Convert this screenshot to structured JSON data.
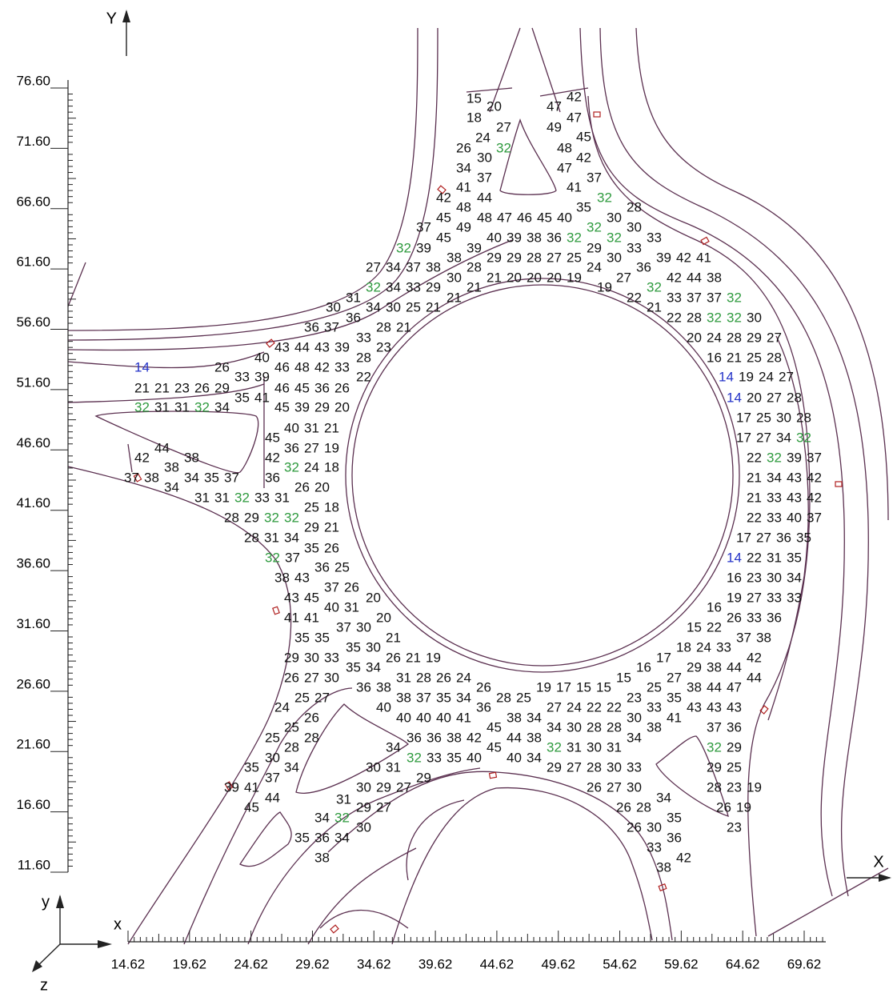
{
  "axis_titles": {
    "top_y": "Y",
    "right_x": "X",
    "triad_x": "x",
    "triad_y": "y",
    "triad_z": "z"
  },
  "x_axis": {
    "ticks": [
      14.62,
      19.62,
      24.62,
      29.62,
      34.62,
      39.62,
      44.62,
      49.62,
      54.62,
      59.62,
      64.62,
      69.62
    ]
  },
  "y_axis": {
    "ticks": [
      {
        "value": 76.6,
        "label": "76.60"
      },
      {
        "value": 71.6,
        "label": "71.60"
      },
      {
        "value": 66.6,
        "label": "66.60"
      },
      {
        "value": 61.6,
        "label": "61.60"
      },
      {
        "value": 56.6,
        "label": "56.60"
      },
      {
        "value": 51.6,
        "label": "51.60"
      },
      {
        "value": 46.6,
        "label": "46.60"
      },
      {
        "value": 41.6,
        "label": "41.60"
      },
      {
        "value": 36.6,
        "label": "36.60"
      },
      {
        "value": 31.6,
        "label": "31.60"
      },
      {
        "value": 26.6,
        "label": "26.60"
      },
      {
        "value": 21.6,
        "label": "21.60"
      },
      {
        "value": 16.6,
        "label": "16.60"
      },
      {
        "value": 11.6,
        "label": "11.60"
      }
    ]
  },
  "label_colors": {
    "default": "#111111",
    "32": "#2e9a3e",
    "14": "#2433c8"
  },
  "labels": [
    [
      15
    ],
    [
      20
    ],
    [
      47
    ],
    [
      42
    ],
    [
      18
    ],
    [
      27
    ],
    [
      47
    ],
    [
      49
    ],
    [
      24
    ],
    [
      45
    ],
    [
      26
    ],
    [
      30
    ],
    [
      32
    ],
    [
      48
    ],
    [
      42
    ],
    [
      34
    ],
    [
      47
    ],
    [
      37
    ],
    [
      37
    ],
    [
      41
    ],
    [
      41
    ],
    [
      42
    ],
    [
      44
    ],
    [
      32
    ],
    [
      48
    ],
    [
      35
    ],
    [
      28
    ],
    [
      45
    ],
    [
      48,
      47,
      46,
      45,
      40
    ],
    [
      30
    ],
    [
      37
    ],
    [
      49
    ],
    [
      32
    ],
    [
      30
    ],
    [
      45
    ],
    [
      40,
      39,
      38,
      36
    ],
    [
      32
    ],
    [
      32
    ],
    [
      33
    ],
    [
      32,
      39
    ],
    [
      39
    ],
    [
      29
    ],
    [
      33
    ],
    [
      38
    ],
    [
      29,
      29,
      28,
      27,
      25
    ],
    [
      30
    ],
    [
      39,
      42,
      41
    ],
    [
      27,
      34,
      37,
      38
    ],
    [
      28
    ],
    [
      24
    ],
    [
      36
    ],
    [
      30
    ],
    [
      21,
      20,
      20,
      20,
      19
    ],
    [
      27
    ],
    [
      42,
      44,
      38
    ],
    [
      32,
      34,
      33,
      29
    ],
    [
      21
    ],
    [
      19
    ],
    [
      32
    ],
    [
      31
    ],
    [
      21
    ],
    [
      22
    ],
    [
      33,
      37,
      37,
      32
    ],
    [
      30
    ],
    [
      34,
      30,
      25,
      21
    ],
    [
      21
    ],
    [
      36
    ],
    [
      22,
      28,
      32,
      32,
      30
    ],
    [
      36,
      37
    ],
    [
      28,
      21
    ],
    [
      33
    ],
    [
      20,
      24,
      28,
      29,
      27
    ],
    [
      43,
      44,
      43,
      39
    ],
    [
      23
    ],
    [
      40
    ],
    [
      28
    ],
    [
      16,
      21,
      25,
      28
    ],
    [
      14
    ],
    [
      26
    ],
    [
      46,
      48,
      42,
      33
    ],
    [
      33,
      39
    ],
    [
      22
    ],
    [
      14,
      19,
      24,
      27
    ],
    [
      21,
      21,
      23,
      26,
      29
    ],
    [
      46,
      45,
      36,
      26
    ],
    [
      35,
      41
    ],
    [
      14,
      20,
      27,
      28
    ],
    [
      32,
      31,
      31,
      32,
      34
    ],
    [
      45,
      39,
      29,
      20
    ],
    [
      17,
      25,
      30,
      28
    ],
    [
      40,
      31,
      21
    ],
    [
      45
    ],
    [
      17,
      27,
      34,
      32
    ],
    [
      44
    ],
    [
      36,
      27,
      19
    ],
    [
      42
    ],
    [
      38
    ],
    [
      42
    ],
    [
      22,
      32,
      39,
      37
    ],
    [
      38
    ],
    [
      32,
      24,
      18
    ],
    [
      37,
      38
    ],
    [
      34,
      35,
      37
    ],
    [
      36
    ],
    [
      21,
      34,
      43,
      42
    ],
    [
      34
    ],
    [
      26,
      20
    ],
    [
      31,
      31,
      32,
      33,
      31
    ],
    [
      21,
      33,
      43,
      42
    ],
    [
      25,
      18
    ],
    [
      28,
      29,
      32,
      32
    ],
    [
      22,
      33,
      40,
      37
    ],
    [
      29,
      21
    ],
    [
      28,
      31,
      34
    ],
    [
      17,
      27,
      36,
      35
    ],
    [
      35,
      26
    ],
    [
      32,
      37
    ],
    [
      14,
      22,
      31,
      35
    ],
    [
      36,
      25
    ],
    [
      38,
      43
    ],
    [
      16,
      23,
      30,
      34
    ],
    [
      37,
      26
    ],
    [
      43,
      45
    ],
    [
      20
    ],
    [
      19,
      27,
      33,
      33
    ],
    [
      40,
      31
    ],
    [
      16
    ],
    [
      41,
      41
    ],
    [
      20
    ],
    [
      26,
      33,
      36
    ],
    [
      37,
      30
    ],
    [
      15,
      22
    ],
    [
      35,
      35
    ],
    [
      21
    ],
    [
      37,
      38
    ],
    [
      35,
      30
    ],
    [
      18,
      24,
      33
    ],
    [
      29,
      30,
      33
    ],
    [
      26,
      21,
      19
    ],
    [
      17
    ],
    [
      42
    ],
    [
      35,
      34
    ],
    [
      16
    ],
    [
      29,
      38,
      44
    ],
    [
      26,
      27,
      30
    ],
    [
      31,
      28,
      26,
      24
    ],
    [
      15
    ],
    [
      27
    ],
    [
      44
    ],
    [
      36,
      38
    ],
    [
      26
    ],
    [
      19,
      17,
      15,
      15
    ],
    [
      25
    ],
    [
      38,
      44,
      47
    ],
    [
      25,
      27
    ],
    [
      38,
      37,
      35,
      34
    ],
    [
      28,
      25
    ],
    [
      23
    ],
    [
      35
    ],
    [
      24
    ],
    [
      40
    ],
    [
      36
    ],
    [
      27,
      24,
      22,
      22
    ],
    [
      33
    ],
    [
      43,
      43,
      43
    ],
    [
      26
    ],
    [
      40,
      40,
      40,
      41
    ],
    [
      38,
      34
    ],
    [
      30
    ],
    [
      41
    ],
    [
      25
    ],
    [
      45
    ],
    [
      34,
      30,
      28,
      28
    ],
    [
      38
    ],
    [
      37,
      36
    ],
    [
      25
    ],
    [
      28
    ],
    [
      36,
      36,
      38,
      42
    ],
    [
      44,
      38
    ],
    [
      34
    ],
    [
      28
    ],
    [
      34
    ],
    [
      45
    ],
    [
      32,
      31,
      30,
      31
    ],
    [
      32,
      29
    ],
    [
      30
    ],
    [
      32,
      33,
      35,
      40
    ],
    [
      40,
      34
    ],
    [
      35
    ],
    [
      34
    ],
    [
      30,
      31
    ],
    [
      29,
      27,
      28,
      30,
      33
    ],
    [
      29,
      25
    ],
    [
      37
    ],
    [
      29
    ],
    [
      39,
      41
    ],
    [
      30,
      29,
      27
    ],
    [
      26,
      27,
      30
    ],
    [
      28,
      23,
      19
    ],
    [
      44
    ],
    [
      34
    ],
    [
      31
    ],
    [
      45
    ],
    [
      29,
      27
    ],
    [
      26,
      28
    ],
    [
      26,
      19
    ],
    [
      34,
      32
    ],
    [
      35
    ],
    [
      30
    ],
    [
      26,
      30
    ],
    [
      23
    ],
    [
      35,
      36,
      34
    ],
    [
      36
    ],
    [
      33
    ],
    [
      38
    ],
    [
      42
    ],
    [
      38
    ]
  ]
}
